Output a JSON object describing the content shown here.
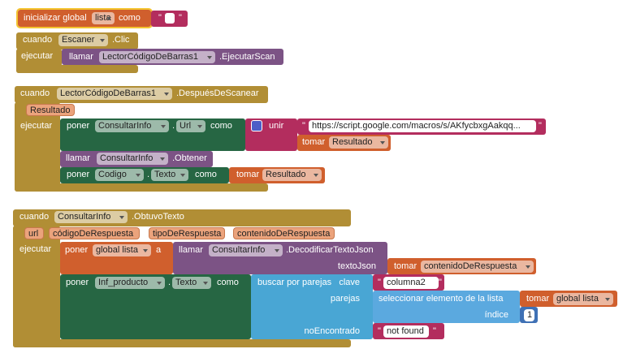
{
  "quote": "\"",
  "init": {
    "keyword": "inicializar global",
    "name": "lista",
    "as": "como"
  },
  "clic": {
    "when": "cuando",
    "component": "Escaner",
    "event": ".Clic",
    "do": "ejecutar",
    "call": {
      "keyword": "llamar",
      "component": "LectorCódigoDeBarras1",
      "method": ".EjecutarScan"
    }
  },
  "scan": {
    "when": "cuando",
    "component": "LectorCódigoDeBarras1",
    "event": ".DespuésDeScanear",
    "param": "Resultado",
    "do": "ejecutar",
    "set_url": {
      "keyword": "poner",
      "component": "ConsultarInfo",
      "dot": ".",
      "property": "Url",
      "to": "como",
      "join": "unir",
      "text": "https://script.google.com/macros/s/AKfycbxgAakqq...",
      "get": {
        "keyword": "tomar",
        "name": "Resultado"
      }
    },
    "call": {
      "keyword": "llamar",
      "component": "ConsultarInfo",
      "method": ".Obtener"
    },
    "set_code": {
      "keyword": "poner",
      "component": "Codigo",
      "dot": ".",
      "property": "Texto",
      "to": "como",
      "get": {
        "keyword": "tomar",
        "name": "Resultado"
      }
    }
  },
  "got": {
    "when": "cuando",
    "component": "ConsultarInfo",
    "event": ".ObtuvoTexto",
    "params": [
      "url",
      "códigoDeRespuesta",
      "tipoDeRespuesta",
      "contenidoDeRespuesta"
    ],
    "do": "ejecutar",
    "set_global": {
      "keyword": "poner",
      "name": "global lista",
      "to": "a",
      "call": {
        "keyword": "llamar",
        "component": "ConsultarInfo",
        "method": ".DecodificarTextoJson",
        "arg": "textoJson",
        "get": {
          "keyword": "tomar",
          "name": "contenidoDeRespuesta"
        }
      }
    },
    "set_text": {
      "keyword": "poner",
      "component": "Inf_producto",
      "dot": ".",
      "property": "Texto",
      "to": "como",
      "lookup": {
        "keyword": "buscar por parejas",
        "key_label": "clave",
        "key": "columna2",
        "pairs_label": "parejas",
        "not_found_label": "noEncontrado",
        "not_found": "not found",
        "select": {
          "keyword": "seleccionar elemento de la lista",
          "index_label": "índice",
          "list": {
            "keyword": "tomar",
            "name": "global lista"
          },
          "index": 1
        }
      }
    }
  }
}
